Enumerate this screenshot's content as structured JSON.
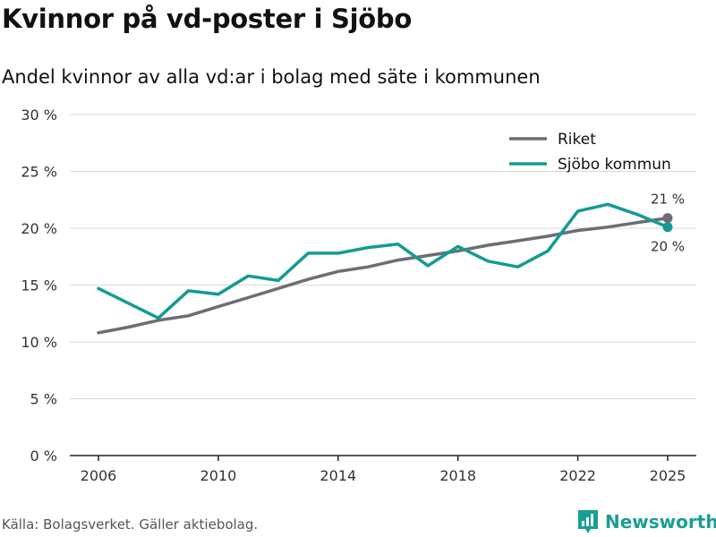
{
  "header": {
    "title": "Kvinnor på vd-poster i Sjöbo",
    "subtitle": "Andel kvinnor av alla vd:ar i bolag med säte i kommunen"
  },
  "footer": {
    "source": "Källa: Bolagsverket. Gäller aktiebolag.",
    "brand": "Newsworthy"
  },
  "colors": {
    "riket": "#6e6c74",
    "kommun": "#139b93",
    "brand": "#1a9e93",
    "grid": "#d9d9d9",
    "axis": "#222222"
  },
  "chart_data": {
    "type": "line",
    "title": "Kvinnor på vd-poster i Sjöbo",
    "subtitle": "Andel kvinnor av alla vd:ar i bolag med säte i kommunen",
    "xlabel": "",
    "ylabel": "",
    "x": [
      2006,
      2007,
      2008,
      2009,
      2010,
      2011,
      2012,
      2013,
      2014,
      2015,
      2016,
      2017,
      2018,
      2019,
      2020,
      2021,
      2022,
      2023,
      2024,
      2025
    ],
    "xticks": [
      2006,
      2010,
      2014,
      2018,
      2022,
      2025
    ],
    "xlim": [
      2006,
      2025
    ],
    "ylim": [
      0,
      30
    ],
    "yticks": [
      0,
      5,
      10,
      15,
      20,
      25,
      30
    ],
    "ytick_labels": [
      "0 %",
      "5 %",
      "10 %",
      "15 %",
      "20 %",
      "25 %",
      "30 %"
    ],
    "grid": true,
    "legend_position": "top-right",
    "series": [
      {
        "name": "Riket",
        "color_key": "riket",
        "values": [
          10.8,
          11.3,
          11.9,
          12.3,
          13.1,
          13.9,
          14.7,
          15.5,
          16.2,
          16.6,
          17.2,
          17.6,
          18.0,
          18.5,
          18.9,
          19.3,
          19.8,
          20.1,
          20.5,
          20.9
        ],
        "end_label": "21 %",
        "end_label_position": "above"
      },
      {
        "name": "Sjöbo kommun",
        "color_key": "kommun",
        "values": [
          14.7,
          13.4,
          12.1,
          14.5,
          14.2,
          15.8,
          15.4,
          17.8,
          17.8,
          18.3,
          18.6,
          16.7,
          18.4,
          17.1,
          16.6,
          18.0,
          21.5,
          22.1,
          21.2,
          20.1
        ],
        "end_label": "20 %",
        "end_label_position": "below"
      }
    ]
  }
}
